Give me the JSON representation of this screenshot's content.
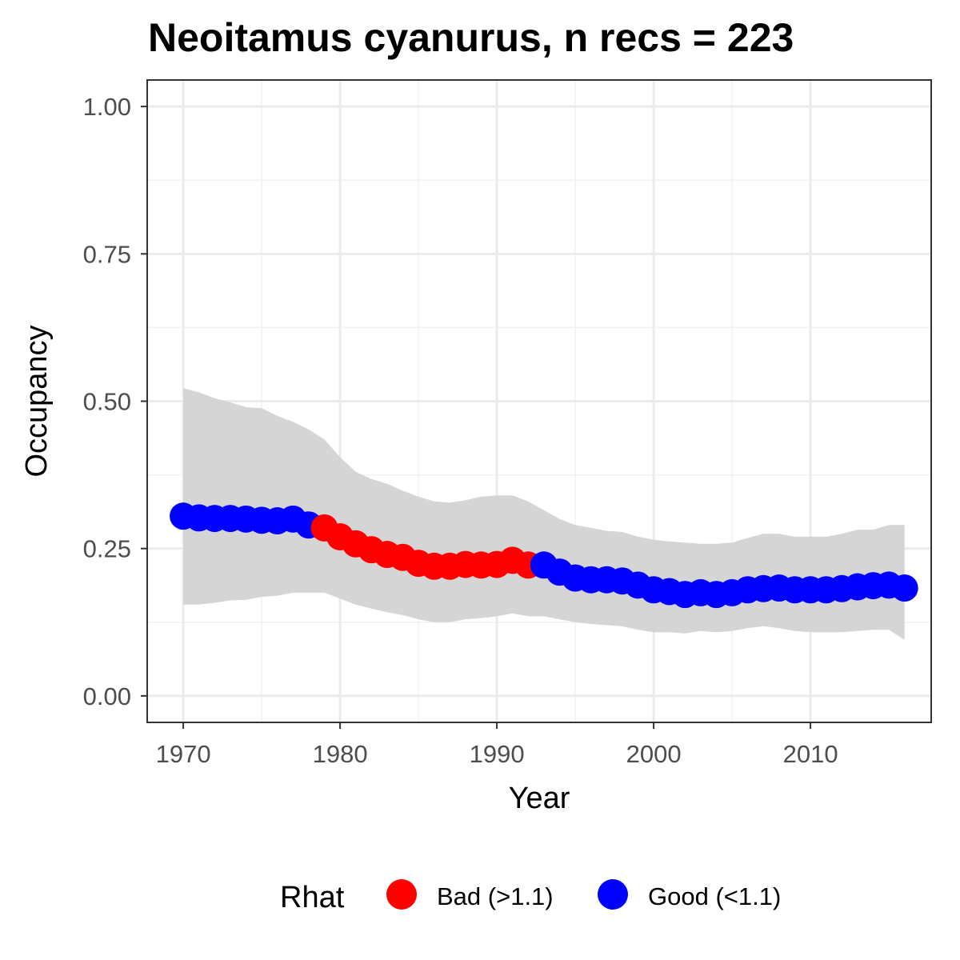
{
  "chart_data": {
    "type": "line",
    "title": "Neoitamus cyanurus, n recs = 223",
    "xlabel": "Year",
    "ylabel": "Occupancy",
    "xlim": [
      1967.7,
      2017.7
    ],
    "ylim": [
      -0.045,
      1.045
    ],
    "x_ticks": [
      1970,
      1980,
      1990,
      2000,
      2010
    ],
    "x_tick_labels": [
      "1970",
      "1980",
      "1990",
      "2000",
      "2010"
    ],
    "y_ticks": [
      0,
      0.25,
      0.5,
      0.75,
      1.0
    ],
    "y_tick_labels": [
      "0.00",
      "0.25",
      "0.50",
      "0.75",
      "1.00"
    ],
    "grid": true,
    "legend": {
      "title": "Rhat",
      "position": "bottom",
      "entries": [
        {
          "label": "Bad (>1.1)",
          "color": "#ff0000"
        },
        {
          "label": "Good (<1.1)",
          "color": "#0000ff"
        }
      ]
    },
    "ribbon_color": "#d3d3d3",
    "series": [
      {
        "x": [
          1970,
          1971,
          1972,
          1973,
          1974,
          1975,
          1976,
          1977,
          1978,
          1979,
          1980,
          1981,
          1982,
          1983,
          1984,
          1985,
          1986,
          1987,
          1988,
          1989,
          1990,
          1991,
          1992,
          1993,
          1994,
          1995,
          1996,
          1997,
          1998,
          1999,
          2000,
          2001,
          2002,
          2003,
          2004,
          2005,
          2006,
          2007,
          2008,
          2009,
          2010,
          2011,
          2012,
          2013,
          2014,
          2015,
          2016
        ],
        "y": [
          0.305,
          0.302,
          0.301,
          0.301,
          0.3,
          0.298,
          0.297,
          0.3,
          0.29,
          0.285,
          0.27,
          0.258,
          0.248,
          0.24,
          0.235,
          0.225,
          0.22,
          0.22,
          0.223,
          0.222,
          0.223,
          0.23,
          0.222,
          0.222,
          0.21,
          0.2,
          0.197,
          0.197,
          0.195,
          0.188,
          0.18,
          0.177,
          0.172,
          0.175,
          0.172,
          0.175,
          0.18,
          0.182,
          0.183,
          0.18,
          0.18,
          0.18,
          0.182,
          0.185,
          0.187,
          0.188,
          0.183
        ],
        "lower": [
          0.155,
          0.155,
          0.158,
          0.162,
          0.163,
          0.168,
          0.17,
          0.175,
          0.175,
          0.175,
          0.165,
          0.155,
          0.148,
          0.142,
          0.137,
          0.13,
          0.125,
          0.125,
          0.13,
          0.132,
          0.135,
          0.14,
          0.135,
          0.135,
          0.13,
          0.125,
          0.122,
          0.12,
          0.118,
          0.112,
          0.108,
          0.108,
          0.106,
          0.11,
          0.108,
          0.11,
          0.115,
          0.118,
          0.115,
          0.11,
          0.108,
          0.108,
          0.108,
          0.11,
          0.112,
          0.112,
          0.095
        ],
        "upper": [
          0.522,
          0.515,
          0.505,
          0.498,
          0.49,
          0.488,
          0.475,
          0.465,
          0.452,
          0.435,
          0.405,
          0.38,
          0.368,
          0.36,
          0.348,
          0.338,
          0.33,
          0.328,
          0.332,
          0.338,
          0.34,
          0.34,
          0.33,
          0.315,
          0.3,
          0.29,
          0.285,
          0.28,
          0.278,
          0.27,
          0.265,
          0.262,
          0.26,
          0.258,
          0.258,
          0.26,
          0.268,
          0.275,
          0.275,
          0.27,
          0.27,
          0.27,
          0.275,
          0.282,
          0.282,
          0.29,
          0.29
        ],
        "rhat": [
          "Good",
          "Good",
          "Good",
          "Good",
          "Good",
          "Good",
          "Good",
          "Good",
          "Good",
          "Bad",
          "Bad",
          "Bad",
          "Bad",
          "Bad",
          "Bad",
          "Bad",
          "Bad",
          "Bad",
          "Bad",
          "Bad",
          "Bad",
          "Bad",
          "Bad",
          "Good",
          "Good",
          "Good",
          "Good",
          "Good",
          "Good",
          "Good",
          "Good",
          "Good",
          "Good",
          "Good",
          "Good",
          "Good",
          "Good",
          "Good",
          "Good",
          "Good",
          "Good",
          "Good",
          "Good",
          "Good",
          "Good",
          "Good",
          "Good"
        ]
      }
    ]
  }
}
